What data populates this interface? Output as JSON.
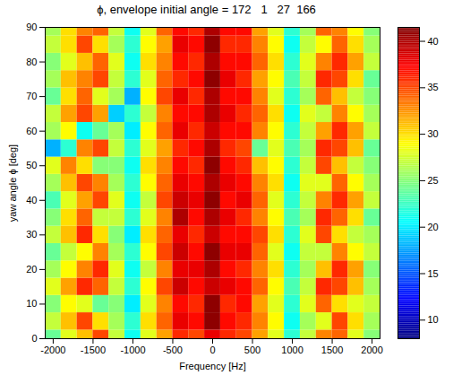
{
  "chart_data": {
    "type": "heatmap",
    "title": "ϕ, envelope initial angle = 172   1   27  166",
    "x_label": "Frequency [Hz]",
    "y_label": "yaw angle ϕ [deg]",
    "x": [
      -2000,
      -1800,
      -1600,
      -1400,
      -1200,
      -1000,
      -800,
      -600,
      -400,
      -200,
      0,
      200,
      400,
      600,
      800,
      1000,
      1200,
      1400,
      1600,
      1800,
      2000
    ],
    "y": [
      0,
      5,
      10,
      15,
      20,
      25,
      30,
      35,
      40,
      45,
      50,
      55,
      60,
      65,
      70,
      75,
      80,
      85,
      90
    ],
    "values": [
      [
        24,
        28,
        31,
        35,
        27,
        21,
        28,
        32,
        36,
        35,
        38,
        36,
        35,
        32,
        28,
        22,
        27,
        33,
        34,
        28,
        25
      ],
      [
        27,
        31,
        35,
        30,
        26,
        22,
        30,
        34,
        38,
        37,
        41,
        37,
        36,
        33,
        29,
        21,
        26,
        28,
        35,
        30,
        26
      ],
      [
        25,
        29,
        28,
        24,
        25,
        20,
        28,
        33,
        37,
        36,
        41,
        36,
        37,
        32,
        28,
        22,
        28,
        34,
        30,
        28,
        27
      ],
      [
        28,
        32,
        36,
        34,
        27,
        22,
        29,
        35,
        39,
        37,
        39,
        38,
        37,
        34,
        29,
        23,
        27,
        36,
        35,
        31,
        26
      ],
      [
        26,
        29,
        33,
        36,
        28,
        21,
        27,
        33,
        38,
        38,
        40,
        37,
        36,
        33,
        30,
        22,
        26,
        31,
        36,
        32,
        25
      ],
      [
        24,
        27,
        29,
        33,
        26,
        22,
        29,
        35,
        39,
        37,
        41,
        38,
        38,
        34,
        28,
        21,
        27,
        27,
        33,
        29,
        27
      ],
      [
        27,
        31,
        36,
        30,
        25,
        20,
        30,
        34,
        38,
        36,
        39,
        37,
        37,
        35,
        30,
        22,
        28,
        35,
        30,
        27,
        26
      ],
      [
        25,
        30,
        34,
        27,
        27,
        22,
        28,
        33,
        40,
        37,
        40,
        38,
        36,
        33,
        29,
        23,
        26,
        36,
        34,
        30,
        24
      ],
      [
        23,
        28,
        32,
        35,
        28,
        21,
        27,
        35,
        39,
        38,
        41,
        37,
        38,
        34,
        28,
        22,
        27,
        33,
        36,
        32,
        27
      ],
      [
        26,
        31,
        35,
        33,
        26,
        22,
        29,
        34,
        38,
        37,
        40,
        38,
        37,
        33,
        30,
        21,
        28,
        28,
        34,
        29,
        26
      ],
      [
        28,
        33,
        30,
        25,
        25,
        21,
        30,
        33,
        37,
        36,
        41,
        37,
        36,
        31,
        29,
        22,
        27,
        35,
        31,
        27,
        25
      ],
      [
        18,
        22,
        33,
        35,
        27,
        22,
        28,
        32,
        36,
        37,
        40,
        36,
        35,
        24,
        28,
        23,
        26,
        36,
        35,
        31,
        24
      ],
      [
        26,
        29,
        21,
        24,
        26,
        20,
        29,
        34,
        38,
        36,
        39,
        37,
        37,
        33,
        29,
        22,
        27,
        32,
        36,
        32,
        27
      ],
      [
        27,
        32,
        35,
        32,
        19,
        22,
        27,
        33,
        37,
        37,
        40,
        38,
        36,
        34,
        30,
        21,
        28,
        27,
        33,
        29,
        26
      ],
      [
        24,
        30,
        34,
        28,
        26,
        18,
        29,
        35,
        38,
        36,
        40,
        37,
        37,
        33,
        28,
        22,
        26,
        34,
        31,
        27,
        25
      ],
      [
        26,
        31,
        33,
        35,
        27,
        22,
        28,
        34,
        36,
        37,
        41,
        38,
        36,
        32,
        29,
        23,
        27,
        36,
        35,
        30,
        24
      ],
      [
        25,
        28,
        31,
        34,
        28,
        21,
        30,
        33,
        37,
        36,
        40,
        37,
        37,
        34,
        30,
        22,
        28,
        33,
        36,
        32,
        27
      ],
      [
        27,
        30,
        35,
        30,
        26,
        22,
        29,
        32,
        38,
        37,
        41,
        36,
        36,
        33,
        29,
        21,
        27,
        29,
        34,
        30,
        26
      ],
      [
        26,
        30,
        33,
        34,
        27,
        21,
        28,
        34,
        37,
        36,
        40,
        37,
        37,
        32,
        28,
        22,
        26,
        34,
        33,
        29,
        25
      ]
    ],
    "xlim": [
      -2100,
      2100
    ],
    "ylim": [
      0,
      90
    ],
    "xticks": [
      -2000,
      -1500,
      -1000,
      -500,
      0,
      500,
      1000,
      1500,
      2000
    ],
    "yticks": [
      0,
      10,
      20,
      30,
      40,
      50,
      60,
      70,
      80,
      90
    ],
    "color_range": [
      8,
      41.5
    ],
    "color_ticks": [
      10,
      15,
      20,
      25,
      30,
      35,
      40
    ]
  }
}
